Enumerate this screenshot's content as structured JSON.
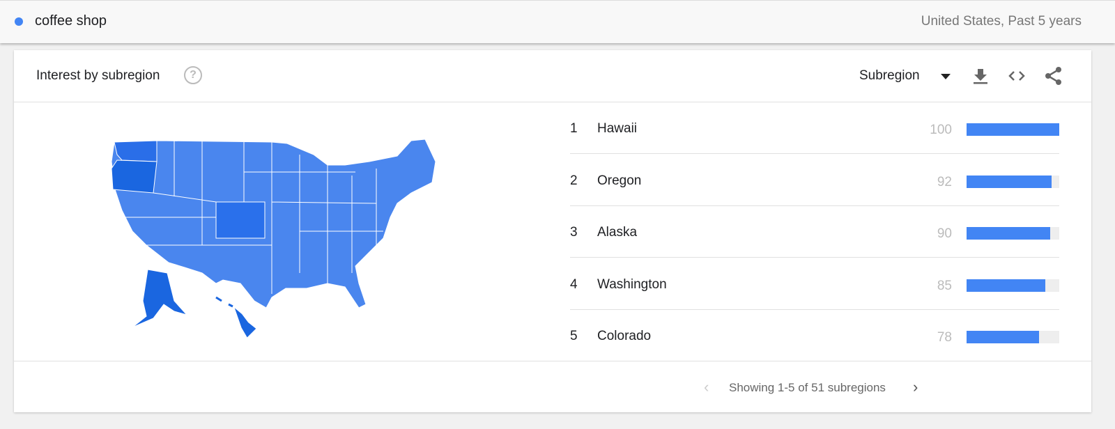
{
  "topbar": {
    "term": "coffee shop",
    "term_color": "#4285f4",
    "scope": "United States, Past 5 years"
  },
  "card": {
    "title": "Interest by subregion",
    "help_icon": "?",
    "selector": "Subregion"
  },
  "icons": [
    "download-icon",
    "embed-code-icon",
    "share-icon"
  ],
  "rows": [
    {
      "rank": "1",
      "name": "Hawaii",
      "value": "100",
      "pct": 100
    },
    {
      "rank": "2",
      "name": "Oregon",
      "value": "92",
      "pct": 92
    },
    {
      "rank": "3",
      "name": "Alaska",
      "value": "90",
      "pct": 90
    },
    {
      "rank": "4",
      "name": "Washington",
      "value": "85",
      "pct": 85
    },
    {
      "rank": "5",
      "name": "Colorado",
      "value": "78",
      "pct": 78
    }
  ],
  "footer": {
    "prev": "‹",
    "label": "Showing 1-5 of 51 subregions",
    "next": "›"
  },
  "colors": {
    "bar": "#4285f4",
    "map_base": "#4a86ee",
    "map_high": "#1a66e0"
  }
}
